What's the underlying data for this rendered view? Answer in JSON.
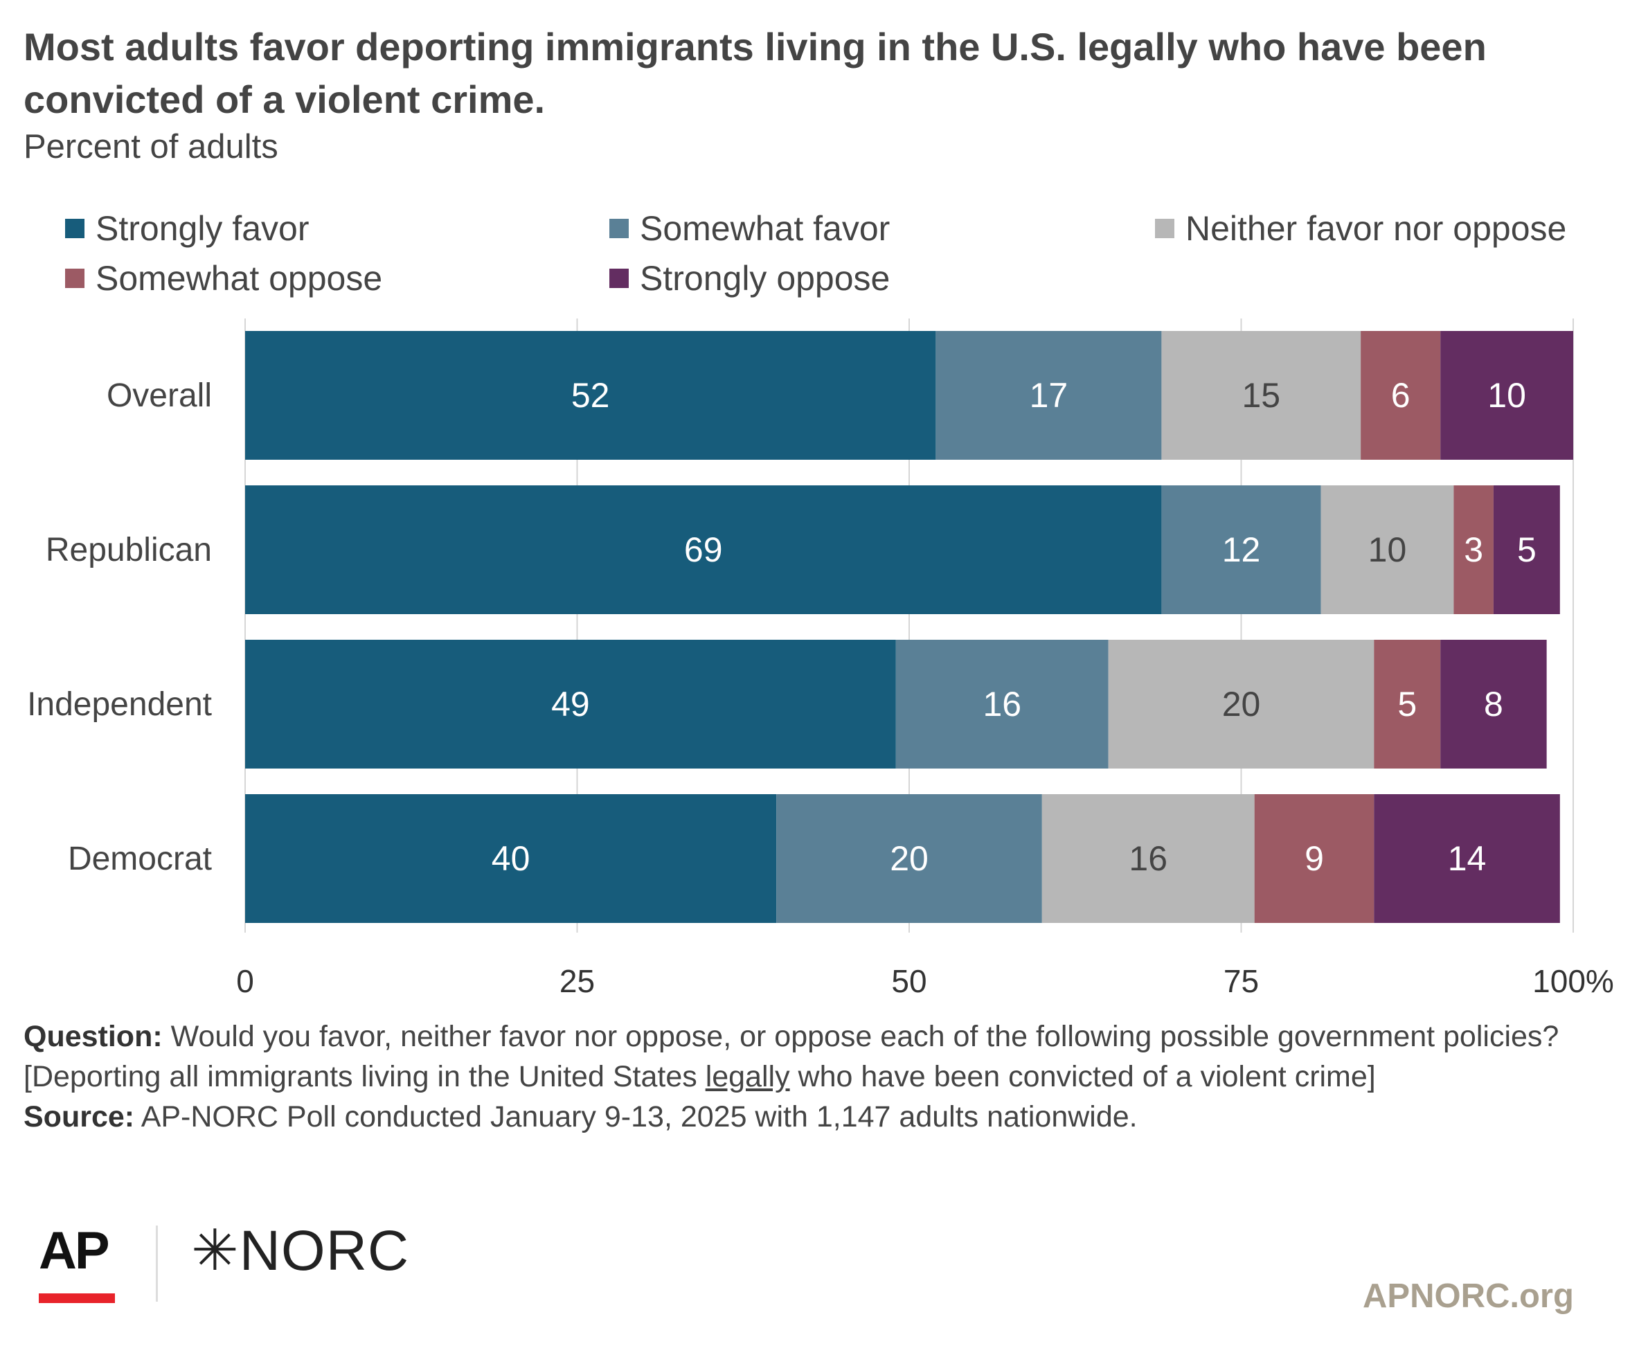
{
  "header": {
    "title": "Most adults favor deporting immigrants living in the U.S. legally who have been convicted of a violent crime.",
    "subtitle": "Percent of adults"
  },
  "legend": [
    {
      "label": "Strongly favor",
      "color": "#175c7b"
    },
    {
      "label": "Somewhat favor",
      "color": "#5a8096"
    },
    {
      "label": "Neither favor nor oppose",
      "color": "#b7b7b7"
    },
    {
      "label": "Somewhat oppose",
      "color": "#9c5a64"
    },
    {
      "label": "Strongly oppose",
      "color": "#632d61"
    }
  ],
  "chart_data": {
    "type": "bar",
    "orientation": "horizontal",
    "stacked": true,
    "categories": [
      "Overall",
      "Republican",
      "Independent",
      "Democrat"
    ],
    "series": [
      {
        "name": "Strongly favor",
        "color": "#175c7b",
        "values": [
          52,
          69,
          49,
          40
        ]
      },
      {
        "name": "Somewhat favor",
        "color": "#5a8096",
        "values": [
          17,
          12,
          16,
          20
        ]
      },
      {
        "name": "Neither favor nor oppose",
        "color": "#b7b7b7",
        "values": [
          15,
          10,
          20,
          16
        ]
      },
      {
        "name": "Somewhat oppose",
        "color": "#9c5a64",
        "values": [
          6,
          3,
          5,
          9
        ]
      },
      {
        "name": "Strongly oppose",
        "color": "#632d61",
        "values": [
          10,
          5,
          8,
          14
        ]
      }
    ],
    "xlim": [
      0,
      100
    ],
    "xticks": [
      "0",
      "25",
      "50",
      "75",
      "100%"
    ],
    "grid": true,
    "legend_position": "top"
  },
  "notes": {
    "question_label": "Question:",
    "question_text_1": "Would you favor, neither favor nor oppose, or oppose each of the following possible government policies? [Deporting all immigrants living in the United States",
    "question_emphasis": "legally",
    "question_text_2": "who have been convicted of a violent crime]",
    "source_label": "Source:",
    "source_text": "AP-NORC Poll conducted January 9-13, 2025 with 1,147 adults nationwide."
  },
  "footer": {
    "logo_ap": "AP",
    "logo_norc": "✳NORC",
    "site": "APNORC.org"
  }
}
